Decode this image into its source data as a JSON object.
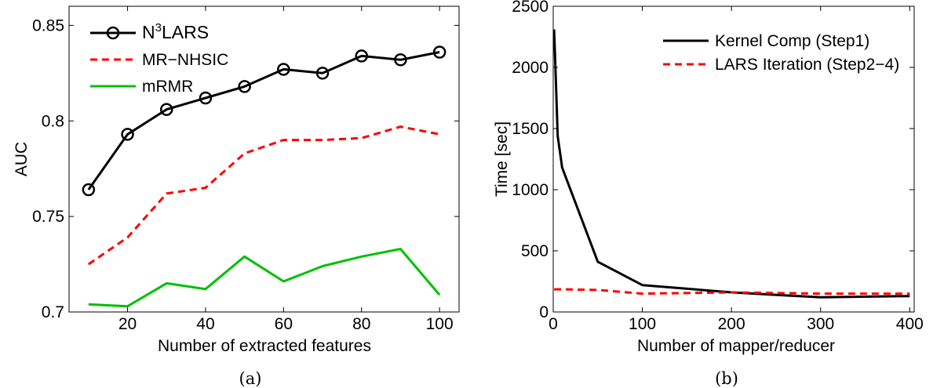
{
  "chart_data": [
    {
      "type": "line",
      "caption": "(a)",
      "xlabel": "Number of extracted features",
      "ylabel": "AUC",
      "xlim": [
        5,
        105
      ],
      "ylim": [
        0.7,
        0.86
      ],
      "xticks": [
        20,
        40,
        60,
        80,
        100
      ],
      "yticks": [
        0.7,
        0.75,
        0.8,
        0.85
      ],
      "ytick_labels": [
        "0.7",
        "0.75",
        "0.8",
        "0.85"
      ],
      "grid": false,
      "legend": "top-left",
      "x": [
        10,
        20,
        30,
        40,
        50,
        60,
        70,
        80,
        90,
        100
      ],
      "series": [
        {
          "name": "N³LARS",
          "name_base": "N",
          "name_sup": "3",
          "name_rest": "LARS",
          "color": "#000000",
          "dash": "solid",
          "marker": "circle",
          "values": [
            0.764,
            0.793,
            0.806,
            0.812,
            0.818,
            0.827,
            0.825,
            0.834,
            0.832,
            0.836
          ]
        },
        {
          "name": "MR−NHSIC",
          "color": "#ff0000",
          "dash": "dashed",
          "marker": "none",
          "values": [
            0.725,
            0.739,
            0.762,
            0.765,
            0.783,
            0.79,
            0.79,
            0.791,
            0.797,
            0.793
          ]
        },
        {
          "name": "mRMR",
          "color": "#00c000",
          "dash": "solid",
          "marker": "none",
          "values": [
            0.704,
            0.703,
            0.715,
            0.712,
            0.729,
            0.716,
            0.724,
            0.729,
            0.733,
            0.709
          ]
        }
      ]
    },
    {
      "type": "line",
      "caption": "(b)",
      "xlabel": "Number of mapper/reducer",
      "ylabel": "Time [sec]",
      "xlim": [
        0,
        405
      ],
      "ylim": [
        0,
        2500
      ],
      "xticks": [
        0,
        100,
        200,
        300,
        400
      ],
      "yticks": [
        0,
        500,
        1000,
        1500,
        2000,
        2500
      ],
      "ytick_labels": [
        "0",
        "500",
        "1000",
        "1500",
        "2000",
        "2500"
      ],
      "grid": false,
      "legend": "top-right",
      "series": [
        {
          "name": "Kernel Comp (Step1)",
          "color": "#000000",
          "dash": "solid",
          "marker": "none",
          "x": [
            1,
            2,
            5,
            10,
            50,
            100,
            200,
            300,
            400
          ],
          "values": [
            2310,
            2100,
            1440,
            1180,
            410,
            220,
            160,
            120,
            130
          ]
        },
        {
          "name": "LARS Iteration (Step2−4)",
          "color": "#ff0000",
          "dash": "dashed",
          "marker": "none",
          "x": [
            1,
            10,
            50,
            100,
            200,
            300,
            400
          ],
          "values": [
            185,
            185,
            180,
            150,
            160,
            150,
            150
          ]
        }
      ]
    }
  ]
}
